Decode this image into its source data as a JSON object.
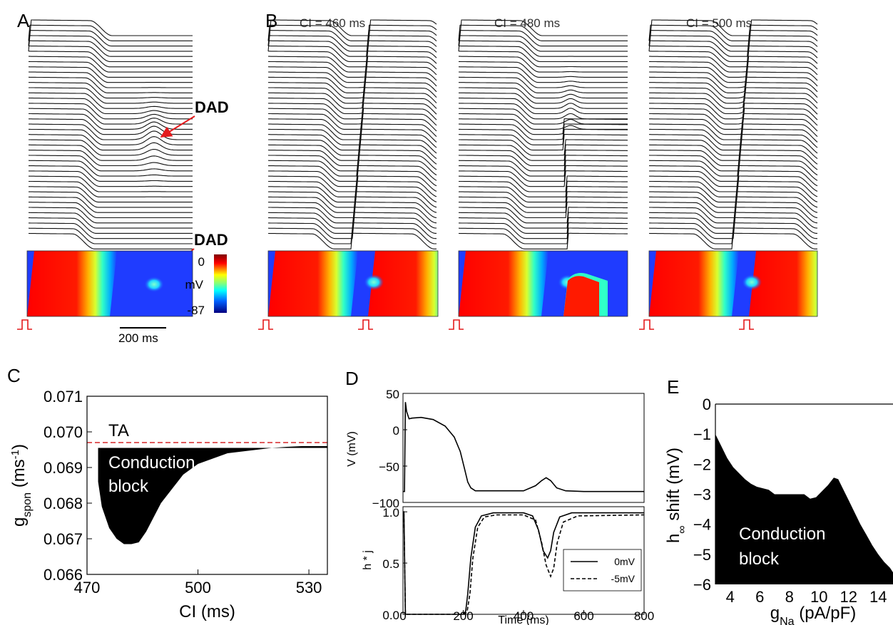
{
  "panels": {
    "A": {
      "letter": "A",
      "dad_top": "DAD",
      "dad_bottom": "DAD",
      "scale_bar": "200 ms",
      "colorbar": {
        "max": "0",
        "unit": "mV",
        "min": "-87"
      }
    },
    "B": {
      "letter": "B",
      "titles": [
        "CI = 460 ms",
        "CI = 480 ms",
        "CI = 500 ms"
      ]
    },
    "C": {
      "letter": "C",
      "ta_label": "TA",
      "region_line1": "Conduction",
      "region_line2": "block"
    },
    "D": {
      "letter": "D"
    },
    "E": {
      "letter": "E",
      "region_line1": "Conduction",
      "region_line2": "block"
    }
  },
  "chart_data": [
    {
      "panel": "C",
      "type": "area",
      "xlabel": "CI (ms)",
      "ylabel": "g",
      "ylabel_sub": "spon",
      "ylabel_unit_pre": " (ms",
      "ylabel_unit_sup": "-1",
      "ylabel_unit_post": ")",
      "xlim": [
        470,
        535
      ],
      "ylim": [
        0.066,
        0.071
      ],
      "xticks": [
        "470",
        "500",
        "530"
      ],
      "yticks": [
        "0.066",
        "0.067",
        "0.068",
        "0.069",
        "0.070",
        "0.071"
      ],
      "threshold": {
        "label": "TA",
        "y": 0.0697,
        "color": "#d62728"
      },
      "boundary_x": [
        473,
        474,
        476,
        478,
        480,
        482,
        484,
        486,
        488,
        490,
        493,
        496,
        500,
        504,
        508,
        512,
        516,
        520,
        524,
        528,
        532,
        535
      ],
      "boundary_y": [
        0.0686,
        0.0679,
        0.0673,
        0.067,
        0.06685,
        0.06685,
        0.0669,
        0.0672,
        0.0676,
        0.068,
        0.0684,
        0.0688,
        0.0691,
        0.06925,
        0.0694,
        0.06945,
        0.0695,
        0.06955,
        0.06958,
        0.0696,
        0.0696,
        0.0696
      ]
    },
    {
      "panel": "D-top",
      "type": "line",
      "ylabel": "V (mV)",
      "xlim": [
        0,
        800
      ],
      "ylim": [
        -100,
        50
      ],
      "yticks": [
        "50",
        "0",
        "−50",
        "−100"
      ],
      "x": [
        0,
        5,
        8,
        12,
        20,
        30,
        60,
        100,
        140,
        170,
        190,
        205,
        215,
        225,
        240,
        300,
        400,
        440,
        460,
        475,
        490,
        510,
        540,
        600,
        700,
        800
      ],
      "y": [
        -85,
        -85,
        38,
        25,
        15,
        16,
        17,
        14,
        5,
        -10,
        -30,
        -55,
        -72,
        -80,
        -84,
        -84,
        -84,
        -77,
        -70,
        -66,
        -70,
        -80,
        -84,
        -85,
        -85,
        -85
      ]
    },
    {
      "panel": "D-bottom",
      "type": "line",
      "xlabel": "Time (ms)",
      "ylabel": "h * j",
      "xlim": [
        0,
        800
      ],
      "ylim": [
        0,
        1.05
      ],
      "xticks": [
        "0",
        "200",
        "400",
        "600",
        "800"
      ],
      "yticks": [
        "0.0",
        "0.5",
        "1.0"
      ],
      "legend": "bottom-right",
      "series": [
        {
          "name": "0mV",
          "style": "solid",
          "x": [
            0,
            3,
            8,
            14,
            200,
            208,
            215,
            225,
            240,
            260,
            300,
            400,
            430,
            450,
            465,
            480,
            490,
            500,
            520,
            560,
            800
          ],
          "y": [
            1.0,
            1.0,
            0.0,
            0.0,
            0.0,
            0.03,
            0.2,
            0.55,
            0.85,
            0.96,
            0.99,
            0.99,
            0.96,
            0.82,
            0.62,
            0.55,
            0.62,
            0.8,
            0.95,
            0.99,
            0.99
          ]
        },
        {
          "name": "-5mV",
          "style": "dashed",
          "x": [
            0,
            3,
            8,
            14,
            205,
            213,
            222,
            232,
            248,
            270,
            310,
            400,
            440,
            460,
            475,
            490,
            500,
            512,
            532,
            580,
            800
          ],
          "y": [
            0.98,
            0.98,
            0.0,
            0.0,
            0.0,
            0.03,
            0.2,
            0.55,
            0.85,
            0.95,
            0.97,
            0.97,
            0.92,
            0.7,
            0.48,
            0.37,
            0.45,
            0.7,
            0.9,
            0.96,
            0.97
          ]
        }
      ]
    },
    {
      "panel": "E",
      "type": "area",
      "xlabel": "g",
      "xlabel_sub": "Na",
      "xlabel_unit": " (pA/pF)",
      "ylabel": "h",
      "ylabel_sub": "∞",
      "ylabel_unit": " shift (mV)",
      "xlim": [
        3,
        15
      ],
      "ylim": [
        -6,
        0
      ],
      "xticks": [
        "4",
        "6",
        "8",
        "10",
        "12",
        "14"
      ],
      "yticks": [
        "0",
        "−1",
        "−2",
        "−3",
        "−4",
        "−5",
        "−6"
      ],
      "boundary_x": [
        3.0,
        3.4,
        3.8,
        4.2,
        4.6,
        5.0,
        5.4,
        5.8,
        6.2,
        6.6,
        7.0,
        8.0,
        9.0,
        9.4,
        9.8,
        10.2,
        10.6,
        11.0,
        11.3,
        11.6,
        12.0,
        12.4,
        12.8,
        13.2,
        13.6,
        14.0,
        14.4,
        14.8,
        15.0
      ],
      "boundary_y": [
        -1.0,
        -1.4,
        -1.8,
        -2.1,
        -2.3,
        -2.5,
        -2.65,
        -2.75,
        -2.8,
        -2.85,
        -3.0,
        -3.0,
        -3.0,
        -3.15,
        -3.1,
        -2.9,
        -2.7,
        -2.45,
        -2.5,
        -2.8,
        -3.2,
        -3.6,
        -4.0,
        -4.35,
        -4.7,
        -5.0,
        -5.25,
        -5.45,
        -5.6
      ]
    }
  ]
}
